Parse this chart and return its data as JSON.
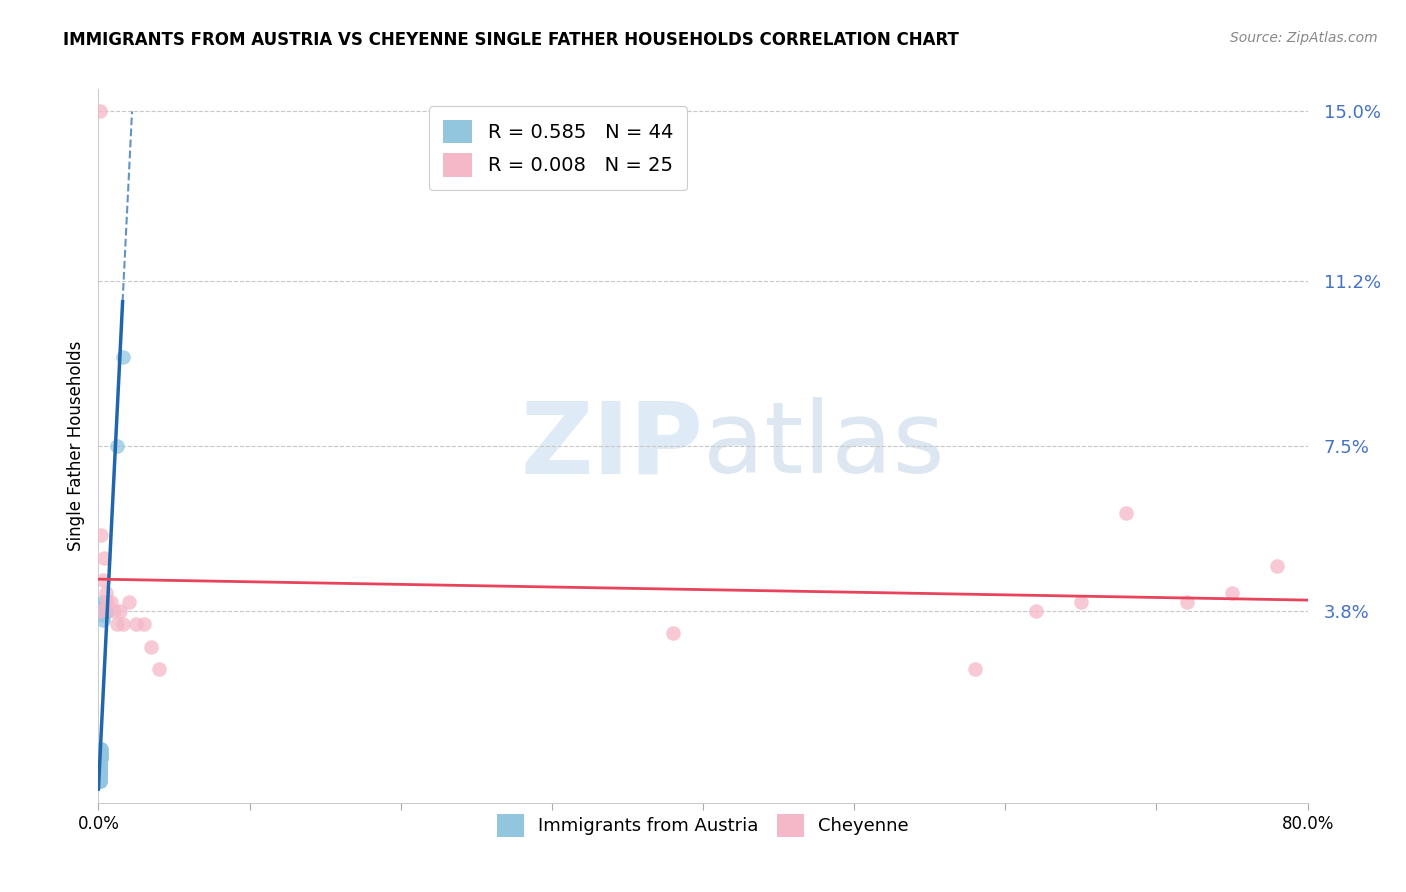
{
  "title": "IMMIGRANTS FROM AUSTRIA VS CHEYENNE SINGLE FATHER HOUSEHOLDS CORRELATION CHART",
  "source": "Source: ZipAtlas.com",
  "ylabel": "Single Father Households",
  "xlim": [
    0.0,
    0.8
  ],
  "ylim": [
    -0.005,
    0.155
  ],
  "yticks": [
    0.038,
    0.075,
    0.112,
    0.15
  ],
  "ytick_labels": [
    "3.8%",
    "7.5%",
    "11.2%",
    "15.0%"
  ],
  "xticks": [
    0.0,
    0.1,
    0.2,
    0.3,
    0.4,
    0.5,
    0.6,
    0.7,
    0.8
  ],
  "xtick_labels": [
    "0.0%",
    "",
    "",
    "",
    "",
    "",
    "",
    "",
    "80.0%"
  ],
  "blue_R": 0.585,
  "blue_N": 44,
  "pink_R": 0.008,
  "pink_N": 25,
  "blue_color": "#92c5de",
  "pink_color": "#f4b8c8",
  "blue_line_color": "#2166ac",
  "pink_line_color": "#e8435a",
  "watermark_zip": "ZIP",
  "watermark_atlas": "atlas",
  "blue_scatter_x": [
    0.001,
    0.001,
    0.001,
    0.001,
    0.001,
    0.001,
    0.001,
    0.001,
    0.001,
    0.001,
    0.001,
    0.001,
    0.001,
    0.001,
    0.001,
    0.001,
    0.001,
    0.001,
    0.001,
    0.001,
    0.001,
    0.001,
    0.001,
    0.001,
    0.001,
    0.002,
    0.002,
    0.002,
    0.002,
    0.002,
    0.002,
    0.002,
    0.002,
    0.003,
    0.003,
    0.003,
    0.003,
    0.003,
    0.004,
    0.004,
    0.005,
    0.006,
    0.012,
    0.016
  ],
  "blue_scatter_y": [
    0.0,
    0.0,
    0.0,
    0.0,
    0.001,
    0.001,
    0.001,
    0.001,
    0.002,
    0.002,
    0.002,
    0.002,
    0.002,
    0.003,
    0.003,
    0.003,
    0.003,
    0.004,
    0.004,
    0.004,
    0.004,
    0.004,
    0.004,
    0.005,
    0.005,
    0.005,
    0.005,
    0.005,
    0.006,
    0.006,
    0.006,
    0.007,
    0.007,
    0.036,
    0.037,
    0.038,
    0.039,
    0.04,
    0.038,
    0.038,
    0.038,
    0.038,
    0.075,
    0.095
  ],
  "pink_scatter_x": [
    0.001,
    0.001,
    0.002,
    0.003,
    0.004,
    0.005,
    0.006,
    0.008,
    0.01,
    0.012,
    0.014,
    0.016,
    0.02,
    0.025,
    0.03,
    0.035,
    0.04,
    0.38,
    0.58,
    0.62,
    0.65,
    0.68,
    0.72,
    0.75,
    0.78
  ],
  "pink_scatter_y": [
    0.15,
    0.038,
    0.055,
    0.045,
    0.05,
    0.042,
    0.04,
    0.04,
    0.038,
    0.035,
    0.038,
    0.035,
    0.04,
    0.035,
    0.035,
    0.03,
    0.025,
    0.033,
    0.025,
    0.038,
    0.04,
    0.06,
    0.04,
    0.042,
    0.048
  ]
}
